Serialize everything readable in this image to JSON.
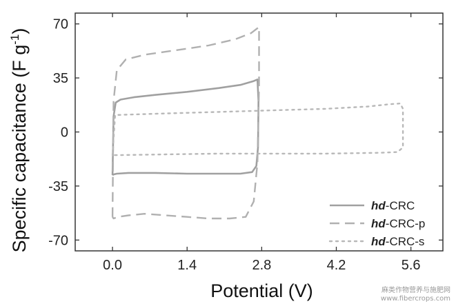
{
  "chart_data": {
    "type": "line",
    "xlabel": "Potential (V)",
    "ylabel_main": "Specific capacitance (F g",
    "ylabel_sup": "-1",
    "ylabel_close": ")",
    "xlim": [
      -0.7,
      6.2
    ],
    "ylim": [
      -77,
      77
    ],
    "xticks": [
      0.0,
      1.4,
      2.8,
      4.2,
      5.6
    ],
    "xtick_labels": [
      "0.0",
      "1.4",
      "2.8",
      "4.2",
      "5.6"
    ],
    "yticks": [
      70,
      35,
      0,
      -35,
      -70
    ],
    "ytick_labels": [
      "70",
      "35",
      "0",
      "-35",
      "-70"
    ],
    "legend_position": "bottom-right",
    "series": [
      {
        "name": "hd-CRC",
        "name_italic": "hd",
        "name_rest": "-CRC",
        "color": "#a0a0a0",
        "style": "solid",
        "x": [
          0.0,
          0.02,
          0.06,
          0.15,
          0.4,
          0.8,
          1.4,
          2.0,
          2.4,
          2.65,
          2.72,
          2.74,
          2.73,
          2.7,
          2.62,
          2.4,
          2.0,
          1.4,
          0.8,
          0.3,
          0.08,
          0.02,
          0.0,
          0.0
        ],
        "y": [
          -28,
          10,
          19,
          21,
          22.5,
          24,
          26,
          28.5,
          30.5,
          33,
          34,
          20,
          -10,
          -22,
          -26,
          -27,
          -27,
          -27,
          -26.5,
          -26.5,
          -27,
          -27.5,
          -28,
          -28
        ]
      },
      {
        "name": "hd-CRC-p",
        "name_italic": "hd",
        "name_rest": "-CRC-p",
        "color": "#b0b0b0",
        "style": "dashed",
        "x": [
          0.0,
          0.02,
          0.08,
          0.25,
          0.6,
          1.2,
          1.8,
          2.3,
          2.6,
          2.75,
          2.75,
          2.72,
          2.65,
          2.5,
          2.2,
          1.8,
          1.4,
          1.0,
          0.6,
          0.3,
          0.1,
          0.02,
          0.0
        ],
        "y": [
          -55,
          20,
          40,
          47,
          50,
          53,
          56,
          60,
          64,
          68,
          30,
          -20,
          -45,
          -55,
          -56,
          -56,
          -55,
          -54,
          -53,
          -54,
          -55,
          -56,
          -55
        ]
      },
      {
        "name": "hd-CRC-s",
        "name_italic": "hd",
        "name_rest": "-CRC-s",
        "color": "#b8b8b8",
        "style": "dotted",
        "x": [
          0.0,
          0.05,
          1.0,
          2.0,
          3.0,
          4.0,
          4.8,
          5.2,
          5.4,
          5.45,
          5.45,
          5.35,
          5.0,
          4.0,
          3.0,
          2.0,
          1.0,
          0.1,
          0.0
        ],
        "y": [
          -15,
          11,
          12,
          13,
          14,
          15,
          16.5,
          18,
          18.5,
          15,
          -10,
          -13,
          -13.5,
          -14,
          -14,
          -14,
          -14.5,
          -15,
          -15
        ]
      }
    ]
  },
  "watermark": {
    "line1": "麻类作物营养与施肥网",
    "line2": "www.fibercrops.com"
  }
}
